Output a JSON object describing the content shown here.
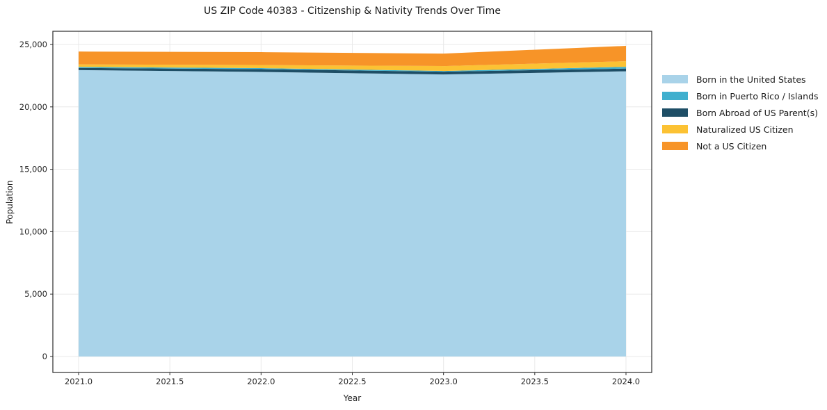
{
  "chart_data": {
    "type": "area",
    "stacked": true,
    "title": "US ZIP Code 40383 - Citizenship & Nativity Trends Over Time",
    "xlabel": "Year",
    "ylabel": "Population",
    "x": [
      2021,
      2022,
      2023,
      2024
    ],
    "series": [
      {
        "name": "Born in the United States",
        "color": "#a9d3e9",
        "values": [
          22950,
          22800,
          22600,
          22850
        ]
      },
      {
        "name": "Born in Puerto Rico / Islands",
        "color": "#3fafce",
        "values": [
          85,
          85,
          60,
          140
        ]
      },
      {
        "name": "Born Abroad of US Parent(s)",
        "color": "#1e4e66",
        "values": [
          170,
          220,
          220,
          220
        ]
      },
      {
        "name": "Naturalized US Citizen",
        "color": "#fcc233",
        "values": [
          200,
          250,
          390,
          450
        ]
      },
      {
        "name": "Not a US Citizen",
        "color": "#f79428",
        "values": [
          1030,
          1030,
          1000,
          1230
        ]
      }
    ],
    "stack_order": [
      0,
      2,
      1,
      3,
      4
    ],
    "totals_by_year": [
      24435,
      24385,
      24270,
      24890
    ],
    "x_ticks": [
      2021.0,
      2021.5,
      2022.0,
      2022.5,
      2023.0,
      2023.5,
      2024.0
    ],
    "x_tick_labels": [
      "2021.0",
      "2021.5",
      "2022.0",
      "2022.5",
      "2023.0",
      "2023.5",
      "2024.0"
    ],
    "y_ticks": [
      0,
      5000,
      10000,
      15000,
      20000,
      25000
    ],
    "y_tick_labels": [
      "0",
      "5,000",
      "10,000",
      "15,000",
      "20,000",
      "25,000"
    ],
    "ylim": [
      -1280,
      26060
    ],
    "xlim": [
      2020.86,
      2024.14
    ],
    "grid": true,
    "legend_position": "right",
    "colors": {
      "grid": "#e8e8e8",
      "spine": "#2b2b2b",
      "tick_text": "#262626",
      "background": "#ffffff"
    }
  }
}
